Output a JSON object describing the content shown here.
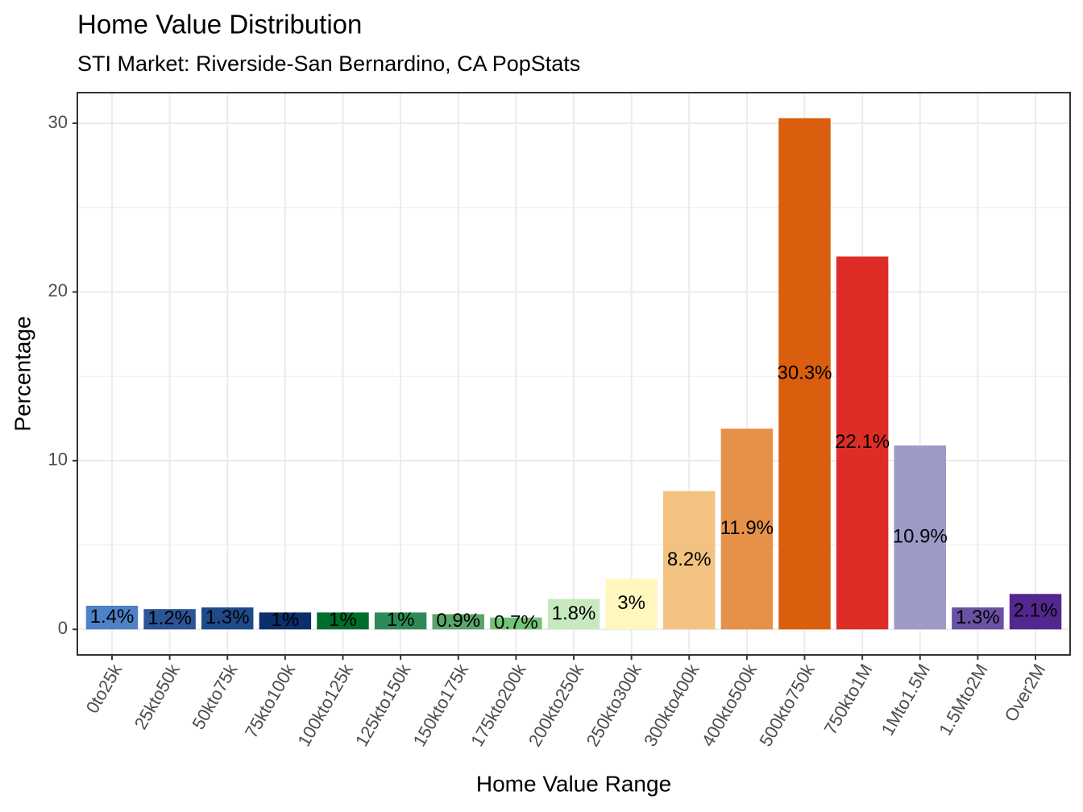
{
  "chart_data": {
    "type": "bar",
    "title": "Home Value Distribution",
    "subtitle": "STI Market: Riverside-San Bernardino, CA PopStats",
    "x_label": "Home Value Range",
    "y_label": "Percentage",
    "categories": [
      "0to25k",
      "25kto50k",
      "50kto75k",
      "75kto100k",
      "100kto125k",
      "125kto150k",
      "150kto175k",
      "175kto200k",
      "200kto250k",
      "250kto300k",
      "300kto400k",
      "400kto500k",
      "500kto750k",
      "750kto1M",
      "1Mto1.5M",
      "1.5Mto2M",
      "Over2M"
    ],
    "values": [
      1.4,
      1.2,
      1.3,
      1,
      1,
      1,
      0.9,
      0.7,
      1.8,
      3,
      8.2,
      11.9,
      30.3,
      22.1,
      10.9,
      1.3,
      2.1
    ],
    "value_labels": [
      "1.4%",
      "1.2%",
      "1.3%",
      "1%",
      "1%",
      "1%",
      "0.9%",
      "0.7%",
      "1.8%",
      "3%",
      "8.2%",
      "11.9%",
      "30.3%",
      "22.1%",
      "10.9%",
      "1.3%",
      "2.1%"
    ],
    "colors": [
      "#4f81c7",
      "#2c5597",
      "#1f4a8a",
      "#0b2f6b",
      "#006d2c",
      "#2e8b57",
      "#5aa56a",
      "#74c476",
      "#c7e9c0",
      "#fff7bc",
      "#f2c380",
      "#e6914a",
      "#d95f0e",
      "#de2d26",
      "#9e9ac8",
      "#6a51a3",
      "#54278f"
    ],
    "ylim": [
      -1.515,
      31.815
    ],
    "yticks": [
      0,
      10,
      20,
      30
    ],
    "minor_yticks": [
      5,
      15,
      25
    ],
    "grid": true
  }
}
